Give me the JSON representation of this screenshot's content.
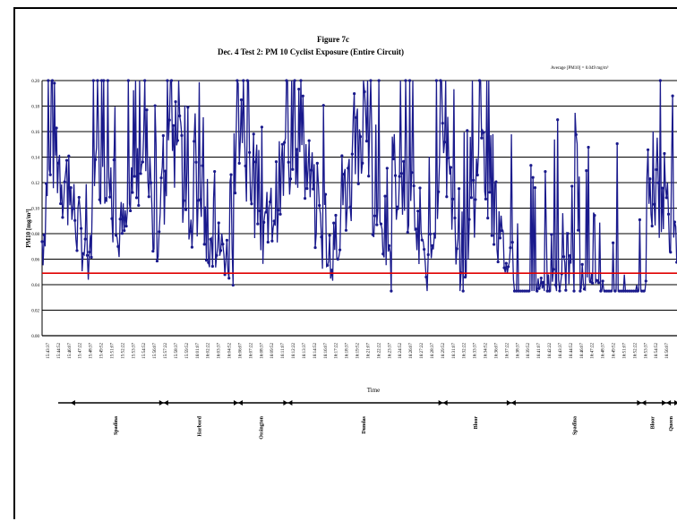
{
  "chart_data": {
    "type": "line",
    "title": "Figure 7c",
    "subtitle": "Dec. 4 Test 2: PM 10 Cyclist Exposure (Entire Circuit)",
    "annotation": "Average [PM10] = 0.049 mg/m³",
    "xlabel": "Time",
    "ylabel": "PM10 [mg/m³]",
    "ylim": [
      0,
      0.2
    ],
    "y_ticks": [
      "0.00",
      "0.02",
      "0.04",
      "0.06",
      "0.08",
      "0.10",
      "0.12",
      "0.14",
      "0.16",
      "0.18",
      "0.20"
    ],
    "x_tick_labels": [
      "15:43:37",
      "15:44:52",
      "15:46:07",
      "15:47:22",
      "15:48:37",
      "15:49:52",
      "15:51:07",
      "15:52:22",
      "15:53:37",
      "15:54:52",
      "15:56:07",
      "15:57:22",
      "15:58:37",
      "15:59:52",
      "16:01:07",
      "16:02:22",
      "16:03:37",
      "16:04:52",
      "16:06:07",
      "16:07:22",
      "16:08:37",
      "16:09:52",
      "16:11:07",
      "16:12:22",
      "16:13:37",
      "16:14:52",
      "16:16:07",
      "16:17:22",
      "16:18:37",
      "16:19:52",
      "16:21:07",
      "16:22:22",
      "16:23:37",
      "16:24:52",
      "16:26:07",
      "16:27:22",
      "16:28:37",
      "16:29:52",
      "16:31:07",
      "16:32:22",
      "16:33:37",
      "16:34:52",
      "16:36:07",
      "16:37:22",
      "16:38:37",
      "16:39:52",
      "16:41:07",
      "16:42:22",
      "16:43:37",
      "16:44:52",
      "16:46:07",
      "16:47:22",
      "16:48:37",
      "16:49:52",
      "16:51:07",
      "16:52:22",
      "16:53:37",
      "16:54:52",
      "16:56:07"
    ],
    "grid": true,
    "average_line": {
      "value": 0.049,
      "color": "#e00000"
    },
    "series_color": "#1a1a8c",
    "segments": [
      {
        "start": 0,
        "end": 0.12,
        "profile": [
          [
            0.02,
            0.09
          ],
          [
            0.1,
            0.2
          ],
          [
            0.6,
            0.07
          ],
          [
            0.8,
            0.2
          ],
          [
            1,
            0.08
          ]
        ],
        "label": "Spadina"
      },
      {
        "start": 0.12,
        "end": 0.24,
        "profile": [
          [
            0.1,
            0.1
          ],
          [
            0.3,
            0.2
          ],
          [
            0.5,
            0.08
          ],
          [
            0.7,
            0.2
          ],
          [
            1,
            0.09
          ]
        ],
        "label": "Harbord"
      },
      {
        "start": 0.24,
        "end": 0.3,
        "profile": [
          [
            0,
            0.1
          ],
          [
            0.5,
            0.09
          ],
          [
            1,
            0.07
          ]
        ],
        "label": "Ossington"
      },
      {
        "start": 0.3,
        "end": 0.55,
        "profile": [
          [
            0.05,
            0.2
          ],
          [
            0.2,
            0.09
          ],
          [
            0.4,
            0.2
          ],
          [
            0.6,
            0.06
          ],
          [
            0.8,
            0.2
          ],
          [
            1,
            0.05
          ]
        ],
        "label": "Dundas"
      },
      {
        "start": 0.55,
        "end": 0.66,
        "profile": [
          [
            0.2,
            0.15
          ],
          [
            0.5,
            0.05
          ],
          [
            0.7,
            0.2
          ],
          [
            1,
            0.04
          ]
        ],
        "label": "Bloor"
      },
      {
        "start": 0.66,
        "end": 0.95,
        "profile": [
          [
            0,
            0.05
          ],
          [
            0.1,
            0.16
          ],
          [
            0.3,
            0.03
          ],
          [
            0.6,
            0.06
          ],
          [
            0.8,
            0.03
          ],
          [
            1,
            0.04
          ]
        ],
        "label": "Spadina"
      },
      {
        "start": 0.95,
        "end": 1.0,
        "profile": [
          [
            0,
            0.15
          ],
          [
            0.5,
            0.13
          ],
          [
            1,
            0.1
          ]
        ],
        "label": "Bloor"
      }
    ],
    "legs": [
      {
        "label": "Spadina",
        "from": 0.02,
        "to": 0.17
      },
      {
        "label": "Harbord",
        "from": 0.17,
        "to": 0.29
      },
      {
        "label": "Ossington",
        "from": 0.29,
        "to": 0.37
      },
      {
        "label": "Dundas",
        "from": 0.37,
        "to": 0.62
      },
      {
        "label": "Bloor",
        "from": 0.62,
        "to": 0.73
      },
      {
        "label": "Spadina",
        "from": 0.73,
        "to": 0.94
      },
      {
        "label": "Bloor",
        "from": 0.94,
        "to": 0.98
      },
      {
        "label": "Queen",
        "from": 0.98,
        "to": 1.0
      }
    ]
  }
}
